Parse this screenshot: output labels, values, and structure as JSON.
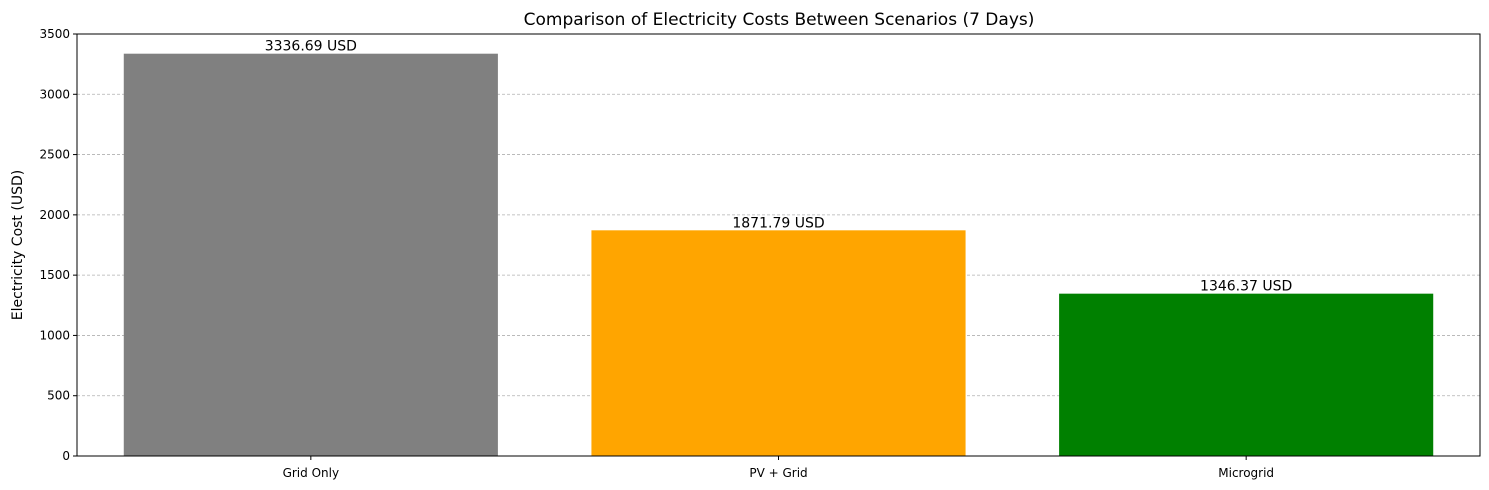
{
  "chart_data": {
    "type": "bar",
    "title": "Comparison of Electricity Costs Between Scenarios (7 Days)",
    "xlabel": "",
    "ylabel": "Electricity Cost (USD)",
    "categories": [
      "Grid Only",
      "PV + Grid",
      "Microgrid"
    ],
    "values": [
      3336.69,
      1871.79,
      1346.37
    ],
    "data_labels": [
      "3336.69 USD",
      "1871.79 USD",
      "1346.37 USD"
    ],
    "colors": [
      "#808080",
      "#ffa500",
      "#008000"
    ],
    "ylim": [
      0,
      3500
    ],
    "yticks": [
      0,
      500,
      1000,
      1500,
      2000,
      2500,
      3000,
      3500
    ],
    "grid": "y-dashed"
  }
}
